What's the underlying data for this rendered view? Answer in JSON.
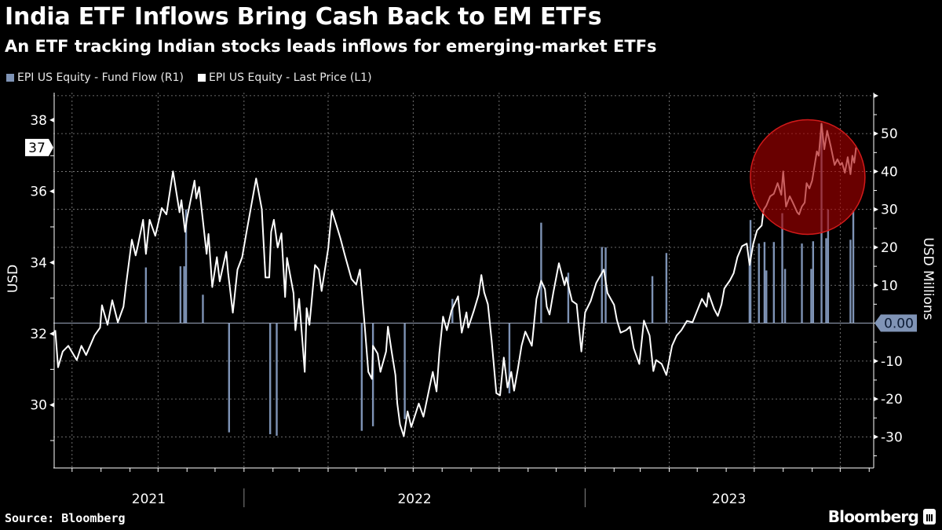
{
  "title": "India ETF Inflows Bring Cash Back to EM ETFs",
  "subtitle": "An ETF tracking Indian stocks leads inflows for emerging-market ETFs",
  "source": "Source: Bloomberg",
  "brand": "Bloomberg",
  "colors": {
    "background": "#000000",
    "price_line": "#ffffff",
    "fund_flow": "#7e93b5",
    "highlight_circle": "#b00000",
    "grid": "#8a8a8a"
  },
  "chart_data": {
    "type": "bar+line",
    "title": "India ETF Inflows Bring Cash Back to EM ETFs",
    "subtitle": "An ETF tracking Indian stocks leads inflows for emerging-market ETFs",
    "legend_placement": "top-left",
    "grid": true,
    "x_axis": {
      "type": "date",
      "range": [
        "2021-06-11",
        "2023-11-05"
      ],
      "labels": [
        "2021",
        "2022",
        "2023"
      ]
    },
    "y_left": {
      "label": "USD",
      "range": [
        28.23,
        38.77
      ],
      "ticks": [
        30,
        32,
        34,
        36,
        38
      ],
      "last_value_label": "37"
    },
    "y_right": {
      "label": "USD Millions",
      "range": [
        -38.2,
        60.8
      ],
      "ticks": [
        -30,
        -20,
        -10,
        10,
        20,
        30,
        40,
        50
      ],
      "zero_label": "0.00"
    },
    "annotation": {
      "type": "circle",
      "highlight": "2023 rally",
      "date_range": [
        "2023-07-01",
        "2023-10-20"
      ]
    },
    "series": [
      {
        "name": "EPI US Equity - Fund Flow (R1)",
        "type": "bar",
        "axis": "right",
        "points": [
          [
            "2021-09-18",
            14.7
          ],
          [
            "2021-10-25",
            15
          ],
          [
            "2021-10-29",
            15
          ],
          [
            "2021-10-31",
            30
          ],
          [
            "2021-11-18",
            7.5
          ],
          [
            "2021-12-16",
            -28.8
          ],
          [
            "2022-01-29",
            -29.3
          ],
          [
            "2022-02-05",
            -29.7
          ],
          [
            "2022-05-07",
            -28.4
          ],
          [
            "2022-05-19",
            -27.2
          ],
          [
            "2022-06-22",
            -25.3
          ],
          [
            "2022-08-12",
            6.4
          ],
          [
            "2022-10-12",
            -18.5
          ],
          [
            "2022-11-15",
            26.5
          ],
          [
            "2022-12-14",
            13.3
          ],
          [
            "2023-01-19",
            20.1
          ],
          [
            "2023-01-23",
            20
          ],
          [
            "2023-03-14",
            12.4
          ],
          [
            "2023-03-29",
            18.5
          ],
          [
            "2023-06-26",
            15.4
          ],
          [
            "2023-06-27",
            27.2
          ],
          [
            "2023-07-06",
            21
          ],
          [
            "2023-07-12",
            21.4
          ],
          [
            "2023-07-14",
            13.9
          ],
          [
            "2023-07-22",
            21.4
          ],
          [
            "2023-07-31",
            29
          ],
          [
            "2023-08-03",
            14.3
          ],
          [
            "2023-08-21",
            21
          ],
          [
            "2023-08-31",
            14.3
          ],
          [
            "2023-09-02",
            21.6
          ],
          [
            "2023-09-11",
            52.7
          ],
          [
            "2023-09-16",
            22.4
          ],
          [
            "2023-09-18",
            30
          ],
          [
            "2023-10-12",
            22
          ],
          [
            "2023-10-15",
            29.7
          ]
        ]
      },
      {
        "name": "EPI US Equity - Last Price (L1)",
        "type": "line",
        "axis": "left",
        "points": [
          [
            "2021-06-13",
            32.1
          ],
          [
            "2021-06-16",
            31.06
          ],
          [
            "2021-06-21",
            31.5
          ],
          [
            "2021-06-27",
            31.66
          ],
          [
            "2021-07-06",
            31.26
          ],
          [
            "2021-07-11",
            31.66
          ],
          [
            "2021-07-16",
            31.4
          ],
          [
            "2021-07-25",
            31.95
          ],
          [
            "2021-07-31",
            32.17
          ],
          [
            "2021-08-02",
            32.8
          ],
          [
            "2021-08-08",
            32.25
          ],
          [
            "2021-08-13",
            32.94
          ],
          [
            "2021-08-19",
            32.32
          ],
          [
            "2021-08-25",
            32.76
          ],
          [
            "2021-08-28",
            33.43
          ],
          [
            "2021-09-03",
            34.64
          ],
          [
            "2021-09-07",
            34.2
          ],
          [
            "2021-09-09",
            34.42
          ],
          [
            "2021-09-15",
            35.2
          ],
          [
            "2021-09-18",
            34.24
          ],
          [
            "2021-09-22",
            35.2
          ],
          [
            "2021-09-28",
            34.75
          ],
          [
            "2021-10-05",
            35.53
          ],
          [
            "2021-10-10",
            35.35
          ],
          [
            "2021-10-17",
            36.56
          ],
          [
            "2021-10-24",
            35.41
          ],
          [
            "2021-10-26",
            35.75
          ],
          [
            "2021-10-30",
            34.86
          ],
          [
            "2021-11-01",
            35.24
          ],
          [
            "2021-11-09",
            36.3
          ],
          [
            "2021-11-11",
            35.8
          ],
          [
            "2021-11-14",
            36.12
          ],
          [
            "2021-11-22",
            34.24
          ],
          [
            "2021-11-24",
            34.8
          ],
          [
            "2021-11-28",
            33.31
          ],
          [
            "2021-12-03",
            34.15
          ],
          [
            "2021-12-06",
            33.47
          ],
          [
            "2021-12-13",
            34.3
          ],
          [
            "2021-12-15",
            33.71
          ],
          [
            "2021-12-20",
            32.59
          ],
          [
            "2021-12-25",
            33.8
          ],
          [
            "2021-12-30",
            34.15
          ],
          [
            "2022-01-04",
            34.9
          ],
          [
            "2022-01-14",
            36.36
          ],
          [
            "2022-01-20",
            35.5
          ],
          [
            "2022-01-24",
            33.58
          ],
          [
            "2022-01-28",
            33.58
          ],
          [
            "2022-01-30",
            34.86
          ],
          [
            "2022-02-02",
            35.2
          ],
          [
            "2022-02-06",
            34.42
          ],
          [
            "2022-02-10",
            34.82
          ],
          [
            "2022-02-14",
            33.03
          ],
          [
            "2022-02-16",
            34.13
          ],
          [
            "2022-02-23",
            33.14
          ],
          [
            "2022-02-25",
            32.1
          ],
          [
            "2022-03-01",
            32.98
          ],
          [
            "2022-03-07",
            30.93
          ],
          [
            "2022-03-09",
            32.72
          ],
          [
            "2022-03-12",
            32.25
          ],
          [
            "2022-03-18",
            33.93
          ],
          [
            "2022-03-22",
            33.8
          ],
          [
            "2022-03-25",
            33.2
          ],
          [
            "2022-04-01",
            34.38
          ],
          [
            "2022-04-05",
            35.46
          ],
          [
            "2022-04-10",
            35.04
          ],
          [
            "2022-04-14",
            34.69
          ],
          [
            "2022-04-19",
            34.2
          ],
          [
            "2022-04-26",
            33.54
          ],
          [
            "2022-05-01",
            33.38
          ],
          [
            "2022-05-05",
            33.8
          ],
          [
            "2022-05-10",
            32.28
          ],
          [
            "2022-05-14",
            30.93
          ],
          [
            "2022-05-18",
            30.73
          ],
          [
            "2022-05-19",
            31.66
          ],
          [
            "2022-05-24",
            31.44
          ],
          [
            "2022-05-27",
            30.93
          ],
          [
            "2022-06-02",
            31.5
          ],
          [
            "2022-06-04",
            32.2
          ],
          [
            "2022-06-08",
            31.5
          ],
          [
            "2022-06-12",
            30.84
          ],
          [
            "2022-06-14",
            30.04
          ],
          [
            "2022-06-17",
            29.45
          ],
          [
            "2022-06-21",
            29.12
          ],
          [
            "2022-06-25",
            29.82
          ],
          [
            "2022-06-29",
            29.38
          ],
          [
            "2022-07-07",
            30.04
          ],
          [
            "2022-07-12",
            29.67
          ],
          [
            "2022-07-16",
            30.18
          ],
          [
            "2022-07-22",
            30.93
          ],
          [
            "2022-07-26",
            30.38
          ],
          [
            "2022-07-29",
            31.44
          ],
          [
            "2022-08-02",
            32.48
          ],
          [
            "2022-08-06",
            32.1
          ],
          [
            "2022-08-11",
            32.65
          ],
          [
            "2022-08-18",
            33.05
          ],
          [
            "2022-08-22",
            32.03
          ],
          [
            "2022-08-27",
            32.6
          ],
          [
            "2022-08-29",
            32.17
          ],
          [
            "2022-09-04",
            32.65
          ],
          [
            "2022-09-09",
            33.09
          ],
          [
            "2022-09-12",
            33.65
          ],
          [
            "2022-09-15",
            33.16
          ],
          [
            "2022-09-19",
            32.83
          ],
          [
            "2022-09-23",
            31.81
          ],
          [
            "2022-09-28",
            30.33
          ],
          [
            "2022-10-02",
            30.27
          ],
          [
            "2022-10-06",
            31.33
          ],
          [
            "2022-10-10",
            30.49
          ],
          [
            "2022-10-14",
            30.93
          ],
          [
            "2022-10-17",
            30.4
          ],
          [
            "2022-10-21",
            31.0
          ],
          [
            "2022-10-25",
            31.66
          ],
          [
            "2022-10-29",
            32.06
          ],
          [
            "2022-11-05",
            31.66
          ],
          [
            "2022-11-10",
            32.98
          ],
          [
            "2022-11-15",
            33.49
          ],
          [
            "2022-11-19",
            33.25
          ],
          [
            "2022-11-21",
            32.76
          ],
          [
            "2022-11-24",
            32.54
          ],
          [
            "2022-11-28",
            33.16
          ],
          [
            "2022-12-04",
            33.98
          ],
          [
            "2022-12-10",
            33.36
          ],
          [
            "2022-12-12",
            33.58
          ],
          [
            "2022-12-18",
            32.92
          ],
          [
            "2022-12-23",
            32.83
          ],
          [
            "2022-12-28",
            31.5
          ],
          [
            "2023-01-01",
            32.6
          ],
          [
            "2023-01-07",
            32.92
          ],
          [
            "2023-01-13",
            33.43
          ],
          [
            "2023-01-21",
            33.8
          ],
          [
            "2023-01-25",
            33.14
          ],
          [
            "2023-02-01",
            32.81
          ],
          [
            "2023-02-04",
            32.39
          ],
          [
            "2023-02-08",
            32.03
          ],
          [
            "2023-02-14",
            32.1
          ],
          [
            "2023-02-18",
            32.2
          ],
          [
            "2023-02-22",
            31.59
          ],
          [
            "2023-02-28",
            31.15
          ],
          [
            "2023-03-05",
            32.37
          ],
          [
            "2023-03-11",
            31.95
          ],
          [
            "2023-03-15",
            30.95
          ],
          [
            "2023-03-18",
            31.26
          ],
          [
            "2023-03-24",
            31.15
          ],
          [
            "2023-03-29",
            30.84
          ],
          [
            "2023-04-04",
            31.66
          ],
          [
            "2023-04-09",
            31.95
          ],
          [
            "2023-04-14",
            32.1
          ],
          [
            "2023-04-20",
            32.36
          ],
          [
            "2023-04-26",
            32.32
          ],
          [
            "2023-05-01",
            32.65
          ],
          [
            "2023-05-06",
            32.98
          ],
          [
            "2023-05-11",
            32.76
          ],
          [
            "2023-05-13",
            33.14
          ],
          [
            "2023-05-19",
            32.7
          ],
          [
            "2023-05-23",
            32.5
          ],
          [
            "2023-05-27",
            32.83
          ],
          [
            "2023-05-30",
            33.27
          ],
          [
            "2023-06-05",
            33.5
          ],
          [
            "2023-06-09",
            33.7
          ],
          [
            "2023-06-13",
            34.15
          ],
          [
            "2023-06-18",
            34.46
          ],
          [
            "2023-06-23",
            34.53
          ],
          [
            "2023-06-26",
            33.93
          ],
          [
            "2023-06-30",
            34.53
          ],
          [
            "2023-07-04",
            34.9
          ],
          [
            "2023-07-09",
            35.04
          ],
          [
            "2023-07-11",
            35.48
          ],
          [
            "2023-07-14",
            35.6
          ],
          [
            "2023-07-18",
            35.86
          ],
          [
            "2023-07-22",
            35.93
          ],
          [
            "2023-07-26",
            36.23
          ],
          [
            "2023-07-30",
            35.9
          ],
          [
            "2023-08-01",
            36.56
          ],
          [
            "2023-08-04",
            35.57
          ],
          [
            "2023-08-08",
            35.86
          ],
          [
            "2023-08-11",
            35.7
          ],
          [
            "2023-08-16",
            35.41
          ],
          [
            "2023-08-18",
            35.35
          ],
          [
            "2023-08-21",
            35.57
          ],
          [
            "2023-08-24",
            35.68
          ],
          [
            "2023-08-26",
            36.23
          ],
          [
            "2023-08-29",
            36.08
          ],
          [
            "2023-09-01",
            36.3
          ],
          [
            "2023-09-06",
            37.12
          ],
          [
            "2023-09-08",
            37.0
          ],
          [
            "2023-09-11",
            37.9
          ],
          [
            "2023-09-14",
            37.18
          ],
          [
            "2023-09-17",
            37.7
          ],
          [
            "2023-09-21",
            37.25
          ],
          [
            "2023-09-25",
            36.74
          ],
          [
            "2023-09-28",
            36.9
          ],
          [
            "2023-10-01",
            36.74
          ],
          [
            "2023-10-03",
            36.8
          ],
          [
            "2023-10-06",
            36.52
          ],
          [
            "2023-10-09",
            36.96
          ],
          [
            "2023-10-12",
            36.48
          ],
          [
            "2023-10-14",
            37.0
          ],
          [
            "2023-10-16",
            36.8
          ],
          [
            "2023-10-18",
            37.23
          ]
        ]
      }
    ]
  }
}
